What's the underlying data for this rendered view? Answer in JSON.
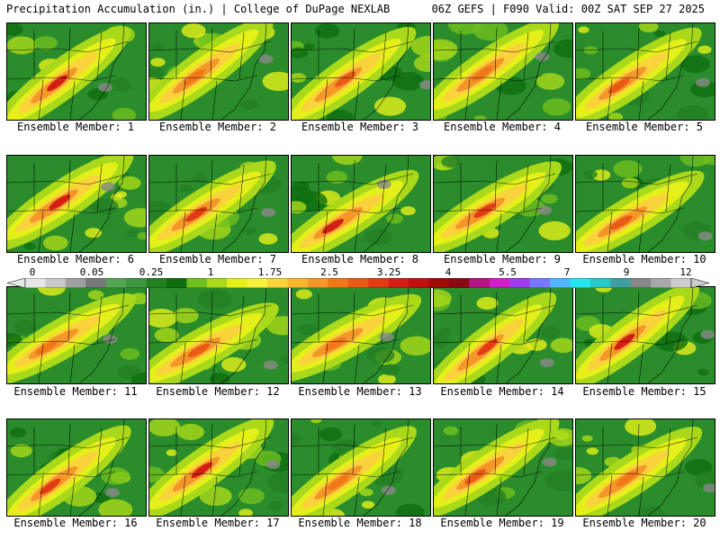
{
  "header": {
    "left": "Precipitation Accumulation (in.) | College of DuPage NEXLAB",
    "right": "06Z GEFS | F090 Valid: 00Z SAT SEP 27 2025"
  },
  "panels": [
    {
      "label": "Ensemble Member: 1"
    },
    {
      "label": "Ensemble Member: 2"
    },
    {
      "label": "Ensemble Member: 3"
    },
    {
      "label": "Ensemble Member: 4"
    },
    {
      "label": "Ensemble Member: 5"
    },
    {
      "label": "Ensemble Member: 6"
    },
    {
      "label": "Ensemble Member: 7"
    },
    {
      "label": "Ensemble Member: 8"
    },
    {
      "label": "Ensemble Member: 9"
    },
    {
      "label": "Ensemble Member: 10"
    },
    {
      "label": "Ensemble Member: 11"
    },
    {
      "label": "Ensemble Member: 12"
    },
    {
      "label": "Ensemble Member: 13"
    },
    {
      "label": "Ensemble Member: 14"
    },
    {
      "label": "Ensemble Member: 15"
    },
    {
      "label": "Ensemble Member: 16"
    },
    {
      "label": "Ensemble Member: 17"
    },
    {
      "label": "Ensemble Member: 18"
    },
    {
      "label": "Ensemble Member: 19"
    },
    {
      "label": "Ensemble Member: 20"
    }
  ],
  "colorbar": {
    "labels": [
      "0",
      "0.05",
      "0.25",
      "1",
      "1.75",
      "2.5",
      "3.25",
      "4",
      "5.5",
      "7",
      "9",
      "12"
    ],
    "colors": [
      "#e6e6e6",
      "#c8c8c8",
      "#a0a0a0",
      "#787878",
      "#56a556",
      "#3d963d",
      "#238023",
      "#0f6e0f",
      "#6fbf1f",
      "#a9d91a",
      "#e5f01a",
      "#f7f03c",
      "#fad23c",
      "#f7b42d",
      "#f59628",
      "#f07819",
      "#e95a14",
      "#e13c14",
      "#d21e14",
      "#c01010",
      "#a30a0a",
      "#8a0a14",
      "#b4147f",
      "#d21ec8",
      "#a03cf0",
      "#7878ff",
      "#50b4ff",
      "#28e6f0",
      "#28c8c8",
      "#40a0a0",
      "#888888",
      "#a8a8a8",
      "#cccccc"
    ]
  }
}
